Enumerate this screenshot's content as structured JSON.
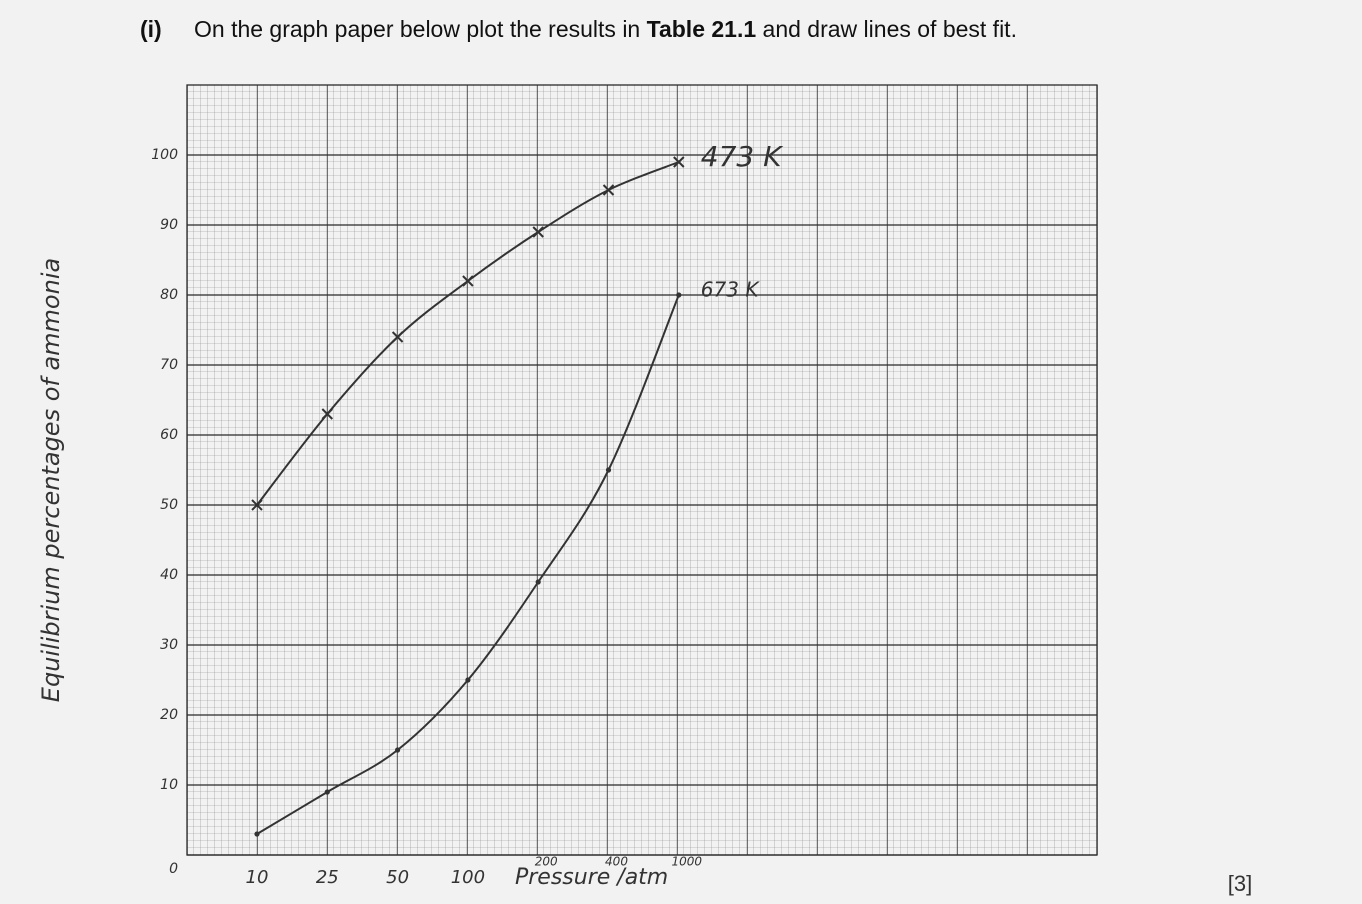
{
  "question": {
    "number": "(i)",
    "text_before": "On the graph paper below plot the results in",
    "bold": "Table 21.1",
    "text_after": "and draw lines of best fit."
  },
  "marks": "[3]",
  "chart_data": {
    "type": "line",
    "x_label": "Pressure /atm",
    "y_label": "Equilibrium percentages of ammonia",
    "categories": [
      "10",
      "25",
      "50",
      "100",
      "200",
      "400",
      "1000"
    ],
    "series": [
      {
        "name": "473 K",
        "color": "#333333",
        "marker": "cross",
        "values": [
          50,
          63,
          74,
          82,
          89,
          95,
          99
        ]
      },
      {
        "name": "673 K",
        "color": "#333333",
        "marker": "dot",
        "values": [
          3,
          9,
          15,
          25,
          39,
          55,
          80
        ]
      }
    ],
    "ylim": [
      0,
      110
    ],
    "yticks": [
      0,
      10,
      20,
      30,
      40,
      50,
      60,
      70,
      80,
      90,
      100
    ],
    "grid": true
  }
}
